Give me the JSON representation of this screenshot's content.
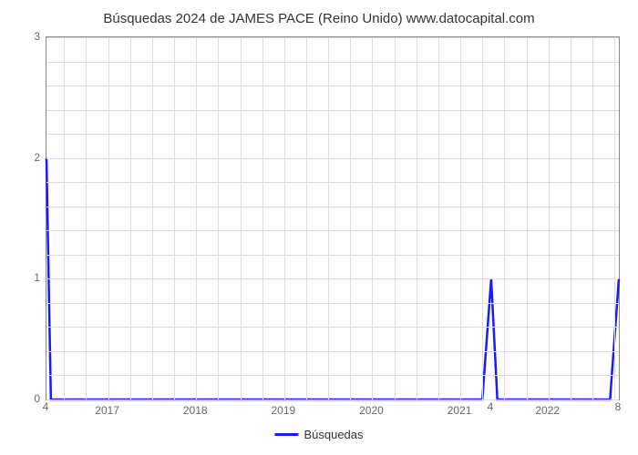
{
  "chart": {
    "type": "line",
    "title": "Búsquedas 2024 de JAMES PACE (Reino Unido) www.datocapital.com",
    "title_fontsize": 15,
    "title_color": "#333333",
    "background_color": "#ffffff",
    "plot_border_color": "#888888",
    "grid_color": "#dddddd",
    "xlim": [
      2016.3,
      2022.8
    ],
    "ylim": [
      0,
      3
    ],
    "y_ticks": [
      0,
      1,
      2,
      3
    ],
    "x_ticks": [
      2017,
      2018,
      2019,
      2020,
      2021,
      2022
    ],
    "x_ticks_minor_step": 0.25,
    "y_ticks_minor_step": 0.2,
    "extra_labels": [
      {
        "x": 2016.3,
        "y_offset": 14,
        "text": "4"
      },
      {
        "x": 2021.35,
        "y_offset": 14,
        "text": "4"
      },
      {
        "x": 2022.8,
        "y_offset": 14,
        "text": "8"
      }
    ],
    "series": {
      "label": "Búsquedas",
      "color": "#1a1aff",
      "line_width": 2.5,
      "marker": "none",
      "x": [
        2016.3,
        2016.35,
        2016.42,
        2021.25,
        2021.35,
        2021.42,
        2022.7,
        2022.8
      ],
      "y": [
        2,
        0,
        0,
        0,
        1,
        0,
        0,
        1
      ]
    },
    "legend_position": "bottom-center",
    "x_label_fontsize": 12,
    "y_label_fontsize": 12,
    "label_color": "#666666"
  }
}
